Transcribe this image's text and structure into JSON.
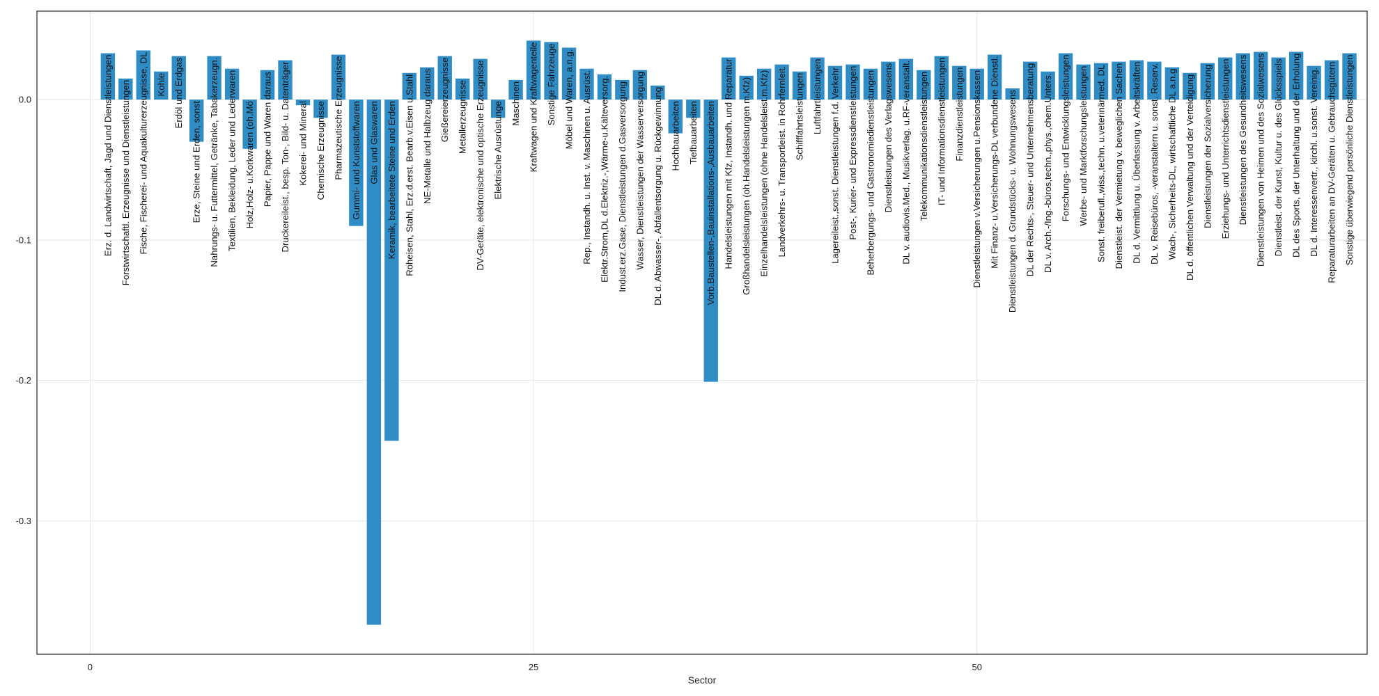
{
  "chart_data": {
    "type": "bar",
    "title": "",
    "xlabel": "Sector",
    "ylabel": "",
    "xlim": [
      -3,
      72
    ],
    "ylim": [
      -0.395,
      0.063
    ],
    "xticks": [
      0,
      25,
      50
    ],
    "yticks": [
      0.0,
      -0.1,
      -0.2,
      -0.3
    ],
    "ytick_labels": [
      "0.0",
      "-0.1",
      "-0.2",
      "-0.3"
    ],
    "grid": true,
    "bar_color": "#2f8cc4",
    "x": [
      1,
      2,
      3,
      4,
      5,
      6,
      7,
      8,
      9,
      10,
      11,
      12,
      13,
      14,
      15,
      16,
      17,
      18,
      19,
      20,
      21,
      22,
      23,
      24,
      25,
      26,
      27,
      28,
      29,
      30,
      31,
      32,
      33,
      34,
      35,
      36,
      37,
      38,
      39,
      40,
      41,
      42,
      43,
      44,
      45,
      46,
      47,
      48,
      49,
      50,
      51,
      52,
      53,
      54,
      55,
      56,
      57,
      58,
      59,
      60,
      61,
      62,
      63,
      64,
      65,
      66,
      67,
      68,
      69,
      70,
      71
    ],
    "categories": [
      "Erz. d. Landwirtschaft, Jagd und Dienstleistungen",
      "Forstwirtschaftl. Erzeugnisse und Dienstleistungen",
      "Fische, Fischerei- und Aquakulturerzeugnisse, DL",
      "Kohle",
      "Erdöl und Erdgas",
      "Erze, Steine und Erden, sonst",
      "Nahrungs- u. Futtermittel, Getränke, Tabakerzeugn.",
      "Textilien, Bekleidung, Leder und Lederwaren",
      "Holz,Holz- u.Korkwaren (oh.Mö",
      "Papier, Pappe und Waren daraus",
      "Druckereileist., besp. Ton-, Bild- u. Datenträger",
      "Kokerei- und Mineral",
      "Chemische Erzeugnisse",
      "Pharmazeutische Erzeugnisse",
      "Gummi- und Kunststoffwaren",
      "Glas und Glaswaren",
      "Keramik, bearbeitete Steine und Erden",
      "Roheisen, Stahl, Erz.d.erst. Bearb.v.Eisen u.Stahl",
      "NE-Metalle und Halbzeug daraus",
      "Gießereierzeugnisse",
      "Metallerzeugnisse",
      "DV-Geräte, elektronische und optische Erzeugnisse",
      "Elektrische Ausrüstunge",
      "Maschinen",
      "Kraftwagen und Kraftwagenteile",
      "Sonstige Fahrzeuge",
      "Möbel und Waren, a.n.g.",
      "Rep., Instandh. u. Inst. v. Maschinen u. Ausrüst.",
      "Elektr.Strom,DL d.Elektriz.-,Wärme-u.Kälteversorg.",
      "Indust.erz.Gase, Dienstleistungen d.Gasversorgung",
      "Wasser, Dienstleistungen der Wasserversorgung",
      "DL d. Abwasser-, Abfallentsorgung u. Rückgewinnung",
      "Hochbauarbeiten",
      "Tiefbauarbeiten",
      "Vorb.Baustellen-,Bauinstallations-,Ausbauarbeiten",
      "Handelsleistungen mit Kfz, Instandh. und Reparatur",
      "Großhandelsleistungen (oh.Handelsleistungen m.Kfz)",
      "Einzelhandelsleistungen (ohne Handelsleist.m.Kfz)",
      "Landverkehrs- u. Transportleist. in Rohrfernleit.",
      "Schifffahrtsleistungen",
      "Luftfahrtleistungen",
      "Lagereileist.,sonst. Dienstleistungen f.d. Verkehr",
      "Post-, Kurier- und Expressdienstleistungen",
      "Beherbergungs- und Gastronomiedienstleistungen",
      "Dienstleistungen des Verlagswesens",
      "DL v. audiovis.Med., Musikverlag. u.RF-veranstalt.",
      "Telekommunikationsdienstleistungen",
      "IT- und Informationsdienstleistungen",
      "Finanzdienstleistungen",
      "Dienstleistungen v.Versicherungen u.Pensionskassen",
      "Mit Finanz- u.Versicherungs-DL verbundene Dienstl.",
      "Dienstleistungen d. Grundstücks- u. Wohnungswesens",
      "DL der Rechts-, Steuer- und Unternehmensberatung",
      "DL v. Arch.-/Ing.-büros,techn.,phys.,chem.Unters.",
      "Forschungs- und Entwicklungsleistungen",
      "Werbe- und Marktforschungsleistungen",
      "Sonst. freiberufl.,wiss.,techn. u.veterinärmed. DL",
      "Dienstleist. der Vermietung v. beweglichen Sachen",
      "DL d. Vermittlung u. Überlassung v. Arbeitskräften",
      "DL v. Reisebüros, -veranstaltern u. sonst. Reserv.",
      "Wach-, Sicherheits-DL, wirtschaftliche DL a.n.g",
      "DL d. öffentlichen Verwaltung und der Verteidigung",
      "Dienstleistungen der Sozialversicherung",
      "Erziehungs- und Unterrichtsdienstleistungen",
      "Dienstleistungen des Gesundheitswesens",
      "Dienstleistungen von Heimen und des Sozialwesens",
      "Dienstleist. der Kunst, Kultur u. des Glücksspiels",
      "DL des Sports, der Unterhaltung und der Erholung",
      "DL d. Interessenvertr., kirchl. u.sonst. Vereinig.",
      "Reparaturarbeiten an DV-Geräten u. Gebrauchsgütern",
      "Sonstige überwiegend persönliche Dienstleistungen"
    ],
    "values": [
      0.033,
      0.015,
      0.035,
      0.02,
      0.031,
      -0.03,
      0.031,
      0.022,
      -0.035,
      0.021,
      0.028,
      -0.004,
      -0.013,
      0.032,
      -0.09,
      -0.374,
      -0.243,
      0.019,
      0.023,
      0.031,
      0.015,
      0.029,
      -0.013,
      0.014,
      0.042,
      0.041,
      0.037,
      0.022,
      0.018,
      0.014,
      0.021,
      0.01,
      -0.024,
      -0.013,
      -0.201,
      0.03,
      0.017,
      0.022,
      0.025,
      0.02,
      0.03,
      0.024,
      0.025,
      0.022,
      0.027,
      0.029,
      0.021,
      0.031,
      0.024,
      0.022,
      0.032,
      0.008,
      0.027,
      0.02,
      0.033,
      0.025,
      0.026,
      0.027,
      0.028,
      0.027,
      0.023,
      0.019,
      0.026,
      0.03,
      0.033,
      0.034,
      0.03,
      0.034,
      0.024,
      0.028,
      0.033
    ]
  }
}
